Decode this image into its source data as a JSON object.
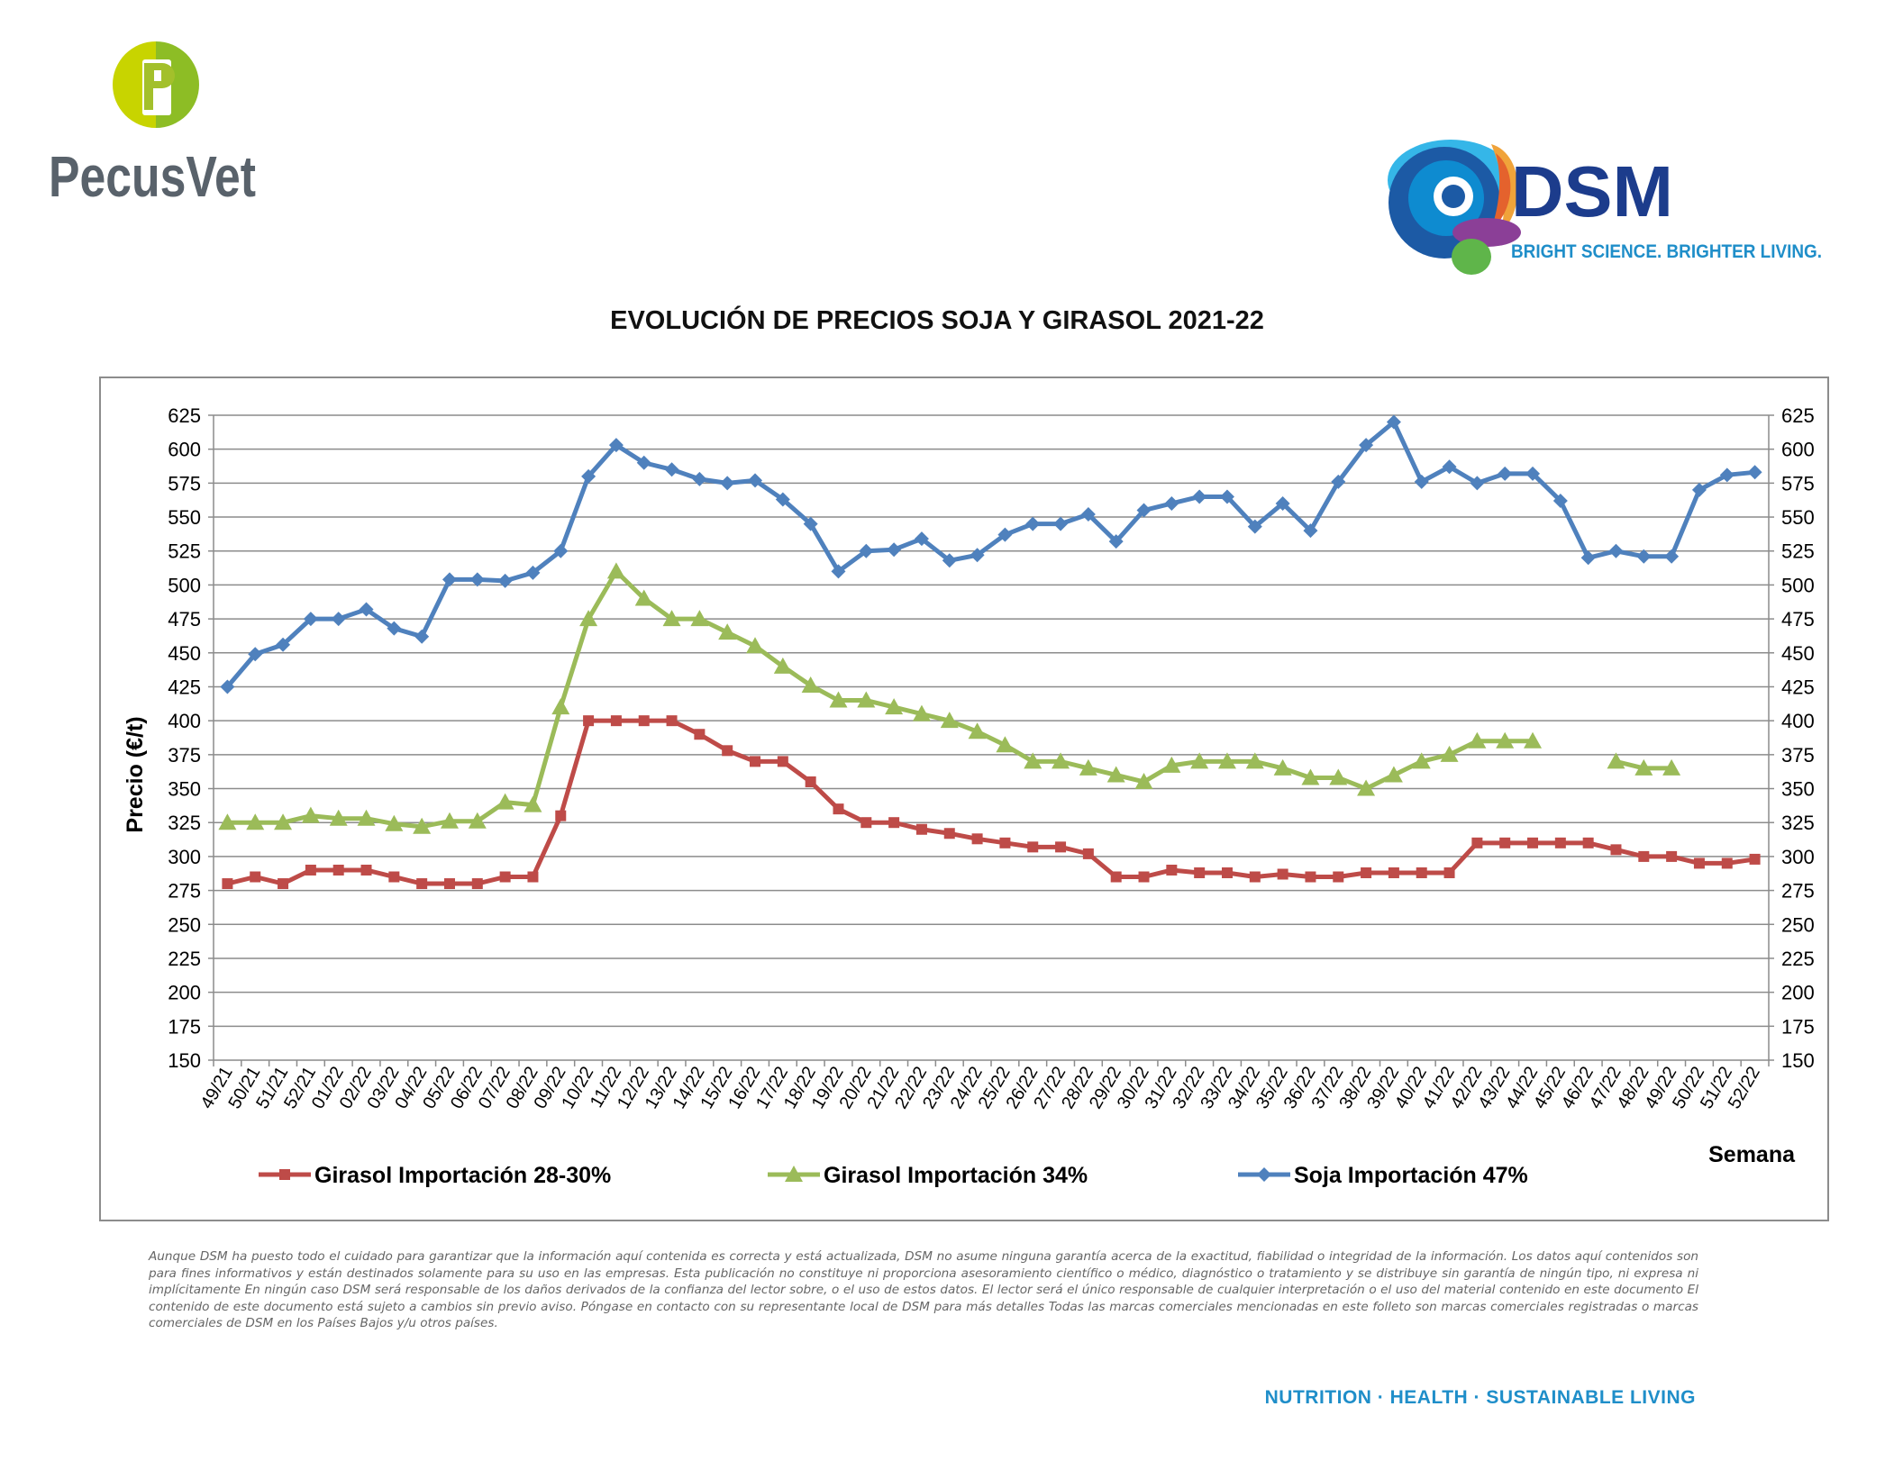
{
  "brand_left": {
    "name": "PecusVet",
    "mark": "P",
    "colors": {
      "green": "#a3c02b",
      "gray": "#59626b"
    }
  },
  "brand_right": {
    "name": "DSM",
    "slogan": "BRIGHT SCIENCE. BRIGHTER LIVING.",
    "colors": {
      "navy": "#1c3c8c",
      "blue": "#1f8ec9"
    }
  },
  "footer": {
    "tagline": "NUTRITION · HEALTH · SUSTAINABLE LIVING"
  },
  "disclaimer": "Aunque DSM ha puesto todo el cuidado para garantizar que la información aquí contenida es correcta y está actualizada, DSM no asume ninguna garantía acerca de la exactitud, fiabilidad o integridad de la información. Los datos aquí contenidos son para fines informativos y están destinados solamente para su uso en las empresas. Esta publicación no constituye ni proporciona asesoramiento científico o médico, diagnóstico o tratamiento y se distribuye sin garantía de ningún tipo, ni expresa ni implícitamente En ningún caso DSM será responsable de los daños derivados de la confianza del lector sobre, o el uso de estos datos. El lector será el único responsable de cualquier interpretación o el uso del material contenido en este documento El contenido de este documento está sujeto a cambios sin previo aviso. Póngase en contacto con su representante local de DSM para más detalles Todas las marcas comerciales mencionadas en este folleto son marcas comerciales registradas o marcas comerciales de DSM en los Países Bajos y/u otros países.",
  "chart_data": {
    "type": "line",
    "title": "EVOLUCIÓN DE PRECIOS SOJA Y GIRASOL 2021-22",
    "xlabel": "Semana",
    "ylabel": "Precio (€/t)",
    "ylim": [
      150,
      625
    ],
    "ytick_step": 25,
    "secondary_y_axis": true,
    "grid": "horizontal",
    "legend_position": "bottom",
    "categories": [
      "49/21",
      "50/21",
      "51/21",
      "52/21",
      "01/22",
      "02/22",
      "03/22",
      "04/22",
      "05/22",
      "06/22",
      "07/22",
      "08/22",
      "09/22",
      "10/22",
      "11/22",
      "12/22",
      "13/22",
      "14/22",
      "15/22",
      "16/22",
      "17/22",
      "18/22",
      "19/22",
      "20/22",
      "21/22",
      "22/22",
      "23/22",
      "24/22",
      "25/22",
      "26/22",
      "27/22",
      "28/22",
      "29/22",
      "30/22",
      "31/22",
      "32/22",
      "33/22",
      "34/22",
      "35/22",
      "36/22",
      "37/22",
      "38/22",
      "39/22",
      "40/22",
      "41/22",
      "42/22",
      "43/22",
      "44/22",
      "45/22",
      "46/22",
      "47/22",
      "48/22",
      "49/22",
      "50/22",
      "51/22",
      "52/22"
    ],
    "series": [
      {
        "name": "Girasol Importación 28-30%",
        "color": "#be4b48",
        "marker": "square",
        "values": [
          280,
          285,
          280,
          290,
          290,
          290,
          285,
          280,
          280,
          280,
          285,
          285,
          330,
          400,
          400,
          400,
          400,
          390,
          378,
          370,
          370,
          355,
          335,
          325,
          325,
          320,
          317,
          313,
          310,
          307,
          307,
          302,
          285,
          285,
          290,
          288,
          288,
          285,
          287,
          285,
          285,
          288,
          288,
          288,
          288,
          310,
          310,
          310,
          310,
          310,
          305,
          300,
          300,
          295,
          295,
          298
        ]
      },
      {
        "name": "Girasol Importación 34%",
        "color": "#9bbb59",
        "marker": "triangle",
        "values": [
          325,
          325,
          325,
          330,
          328,
          328,
          324,
          322,
          326,
          326,
          340,
          338,
          410,
          475,
          510,
          490,
          475,
          475,
          465,
          455,
          440,
          426,
          415,
          415,
          410,
          405,
          400,
          392,
          382,
          370,
          370,
          365,
          360,
          355,
          367,
          370,
          370,
          370,
          365,
          358,
          358,
          350,
          360,
          370,
          375,
          385,
          385,
          385,
          null,
          null,
          370,
          365,
          365,
          null,
          null,
          null
        ]
      },
      {
        "name": "Soja Importación 47%",
        "color": "#4f81bd",
        "marker": "diamond",
        "values": [
          425,
          449,
          456,
          475,
          475,
          482,
          468,
          462,
          504,
          504,
          503,
          509,
          525,
          580,
          603,
          590,
          585,
          578,
          575,
          577,
          563,
          545,
          510,
          525,
          526,
          534,
          518,
          522,
          537,
          545,
          545,
          552,
          532,
          555,
          560,
          565,
          565,
          543,
          560,
          540,
          576,
          603,
          620,
          576,
          587,
          575,
          582,
          582,
          562,
          520,
          525,
          521,
          521,
          570,
          581,
          583
        ]
      }
    ]
  }
}
